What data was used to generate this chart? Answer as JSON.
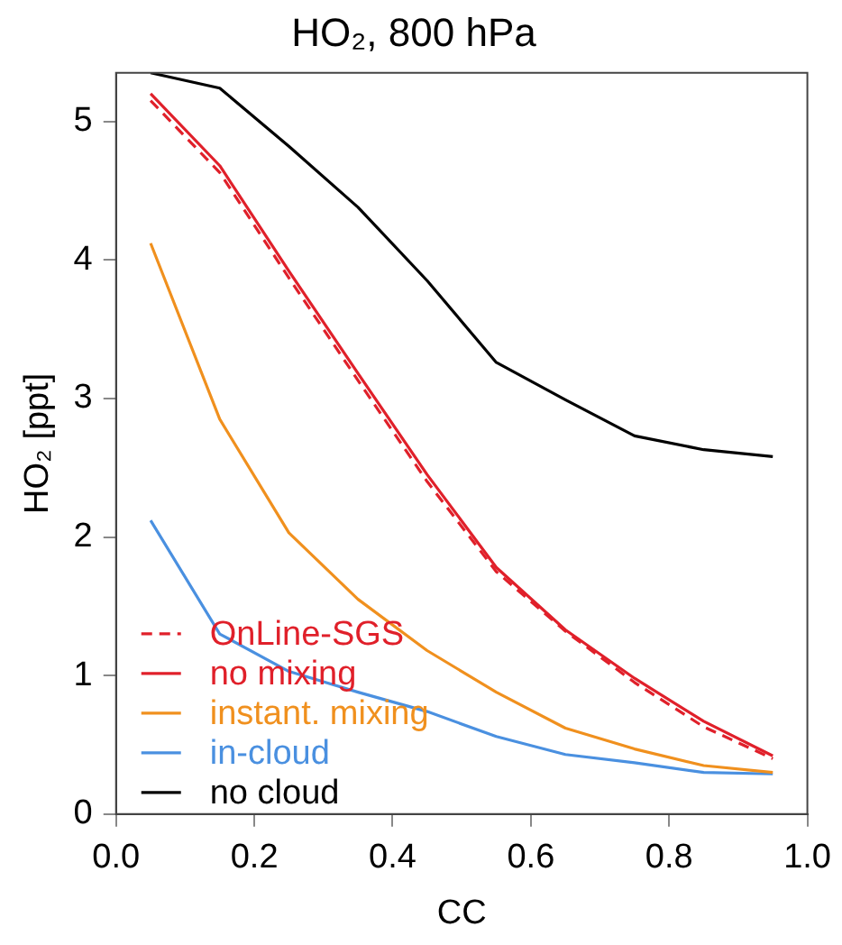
{
  "chart_data": {
    "type": "line",
    "title": "HO₂, 800 hPa",
    "xlabel": "CC",
    "ylabel": "HO₂ [ppt]",
    "x": [
      0.05,
      0.15,
      0.25,
      0.35,
      0.45,
      0.55,
      0.65,
      0.75,
      0.85,
      0.95
    ],
    "xlim": [
      0,
      1
    ],
    "xticks": [
      {
        "value": 0,
        "label": "0.0"
      },
      {
        "value": 0.2,
        "label": "0.2"
      },
      {
        "value": 0.4,
        "label": "0.4"
      },
      {
        "value": 0.6,
        "label": "0.6"
      },
      {
        "value": 0.8,
        "label": "0.8"
      },
      {
        "value": 1,
        "label": "1.0"
      }
    ],
    "ylim": [
      0,
      5.35
    ],
    "yticks": [
      0,
      1,
      2,
      3,
      4,
      5
    ],
    "grid": false,
    "legend": "bottom left",
    "marker": "none",
    "series": [
      {
        "name": "OnLine-SGS",
        "color": "#e0202a",
        "line_style": "dashed",
        "values": [
          5.15,
          4.63,
          3.87,
          3.13,
          2.4,
          1.75,
          1.32,
          0.95,
          0.63,
          0.4
        ]
      },
      {
        "name": "no mixing",
        "color": "#e0202a",
        "line_style": "solid",
        "values": [
          5.2,
          4.68,
          3.92,
          3.18,
          2.45,
          1.78,
          1.33,
          0.98,
          0.67,
          0.42
        ]
      },
      {
        "name": "instant. mixing",
        "color": "#f0901e",
        "line_style": "solid",
        "values": [
          4.12,
          2.85,
          2.03,
          1.55,
          1.18,
          0.88,
          0.62,
          0.47,
          0.35,
          0.3
        ]
      },
      {
        "name": "in-cloud",
        "color": "#4a90e0",
        "line_style": "solid",
        "values": [
          2.12,
          1.3,
          1.03,
          0.88,
          0.74,
          0.56,
          0.43,
          0.37,
          0.3,
          0.29
        ]
      },
      {
        "name": "no cloud",
        "color": "#000000",
        "line_style": "solid",
        "values": [
          5.35,
          5.24,
          4.82,
          4.38,
          3.85,
          3.26,
          2.99,
          2.73,
          2.63,
          2.58
        ]
      }
    ]
  }
}
